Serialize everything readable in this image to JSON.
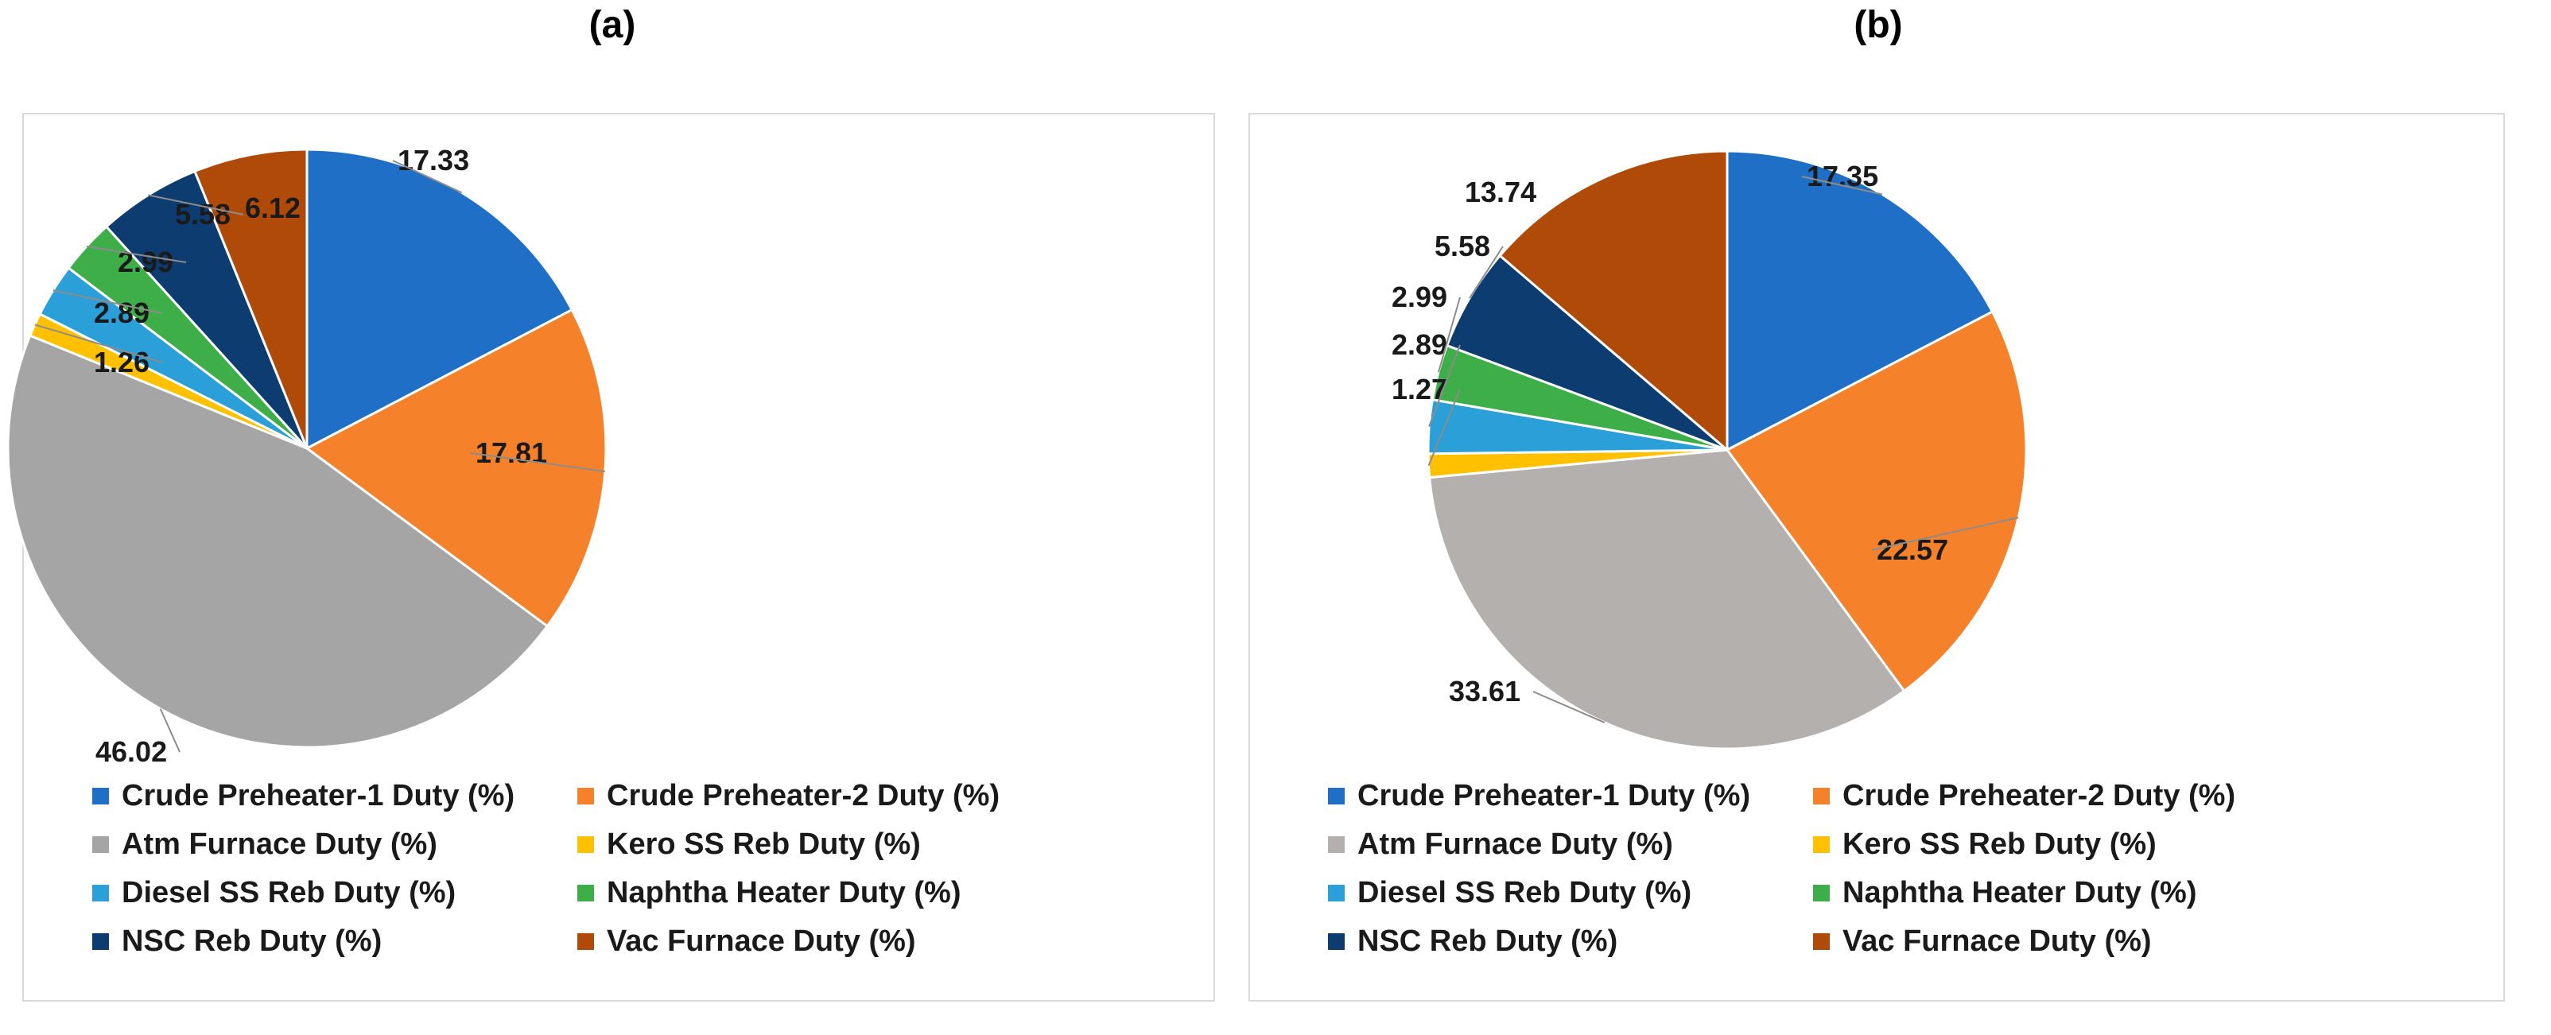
{
  "chart_data": [
    {
      "type": "pie",
      "title": "(a)",
      "categories": [
        "Crude Preheater-1 Duty (%)",
        "Crude Preheater-2 Duty (%)",
        "Atm Furnace Duty (%)",
        "Kero SS Reb Duty (%)",
        "Diesel SS Reb Duty (%)",
        "Naphtha Heater Duty (%)",
        "NSC Reb Duty (%)",
        "Vac Furnace Duty (%)"
      ],
      "values": [
        17.33,
        17.81,
        46.02,
        1.26,
        2.89,
        2.99,
        5.58,
        6.12
      ],
      "data_labels": [
        "17.33",
        "17.81",
        "46.02",
        "1.26",
        "2.89",
        "2.99",
        "5.58",
        "6.12"
      ],
      "colors": [
        "#1f6fc6",
        "#f5822a",
        "#a5a5a5",
        "#ffc000",
        "#2a9fd8",
        "#3eae49",
        "#0c3c70",
        "#b04a08"
      ],
      "legend_position": "bottom"
    },
    {
      "type": "pie",
      "title": "(b)",
      "categories": [
        "Crude Preheater-1 Duty (%)",
        "Crude Preheater-2 Duty (%)",
        "Atm Furnace Duty (%)",
        "Kero SS Reb Duty (%)",
        "Diesel SS Reb Duty (%)",
        "Naphtha Heater Duty (%)",
        "NSC Reb Duty (%)",
        "Vac Furnace Duty (%)"
      ],
      "values": [
        17.35,
        22.57,
        33.61,
        1.27,
        2.89,
        2.99,
        5.58,
        13.74
      ],
      "data_labels": [
        "17.35",
        "22.57",
        "33.61",
        "1.27",
        "2.89",
        "2.99",
        "5.58",
        "13.74"
      ],
      "colors": [
        "#1f6fc6",
        "#f5822a",
        "#b3b0ae",
        "#ffc000",
        "#2a9fd8",
        "#3eae49",
        "#0c3c70",
        "#b04a08"
      ],
      "legend_position": "bottom"
    }
  ]
}
